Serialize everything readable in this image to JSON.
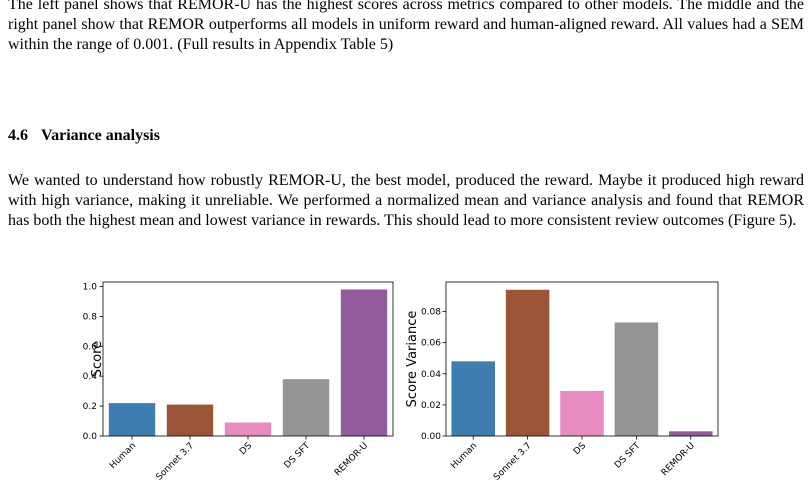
{
  "paragraph1": "The left panel shows that REMOR-U has the highest scores across metrics compared to other models. The middle and the right panel show that REMOR outperforms all models in uniform reward and human-aligned reward. All values had a SEM within the range of 0.001. (Full results in Appendix Table 5)",
  "section": {
    "number": "4.6",
    "title": "Variance analysis"
  },
  "paragraph2": "We wanted to understand how robustly REMOR-U, the best model, produced the reward. Maybe it produced high reward with high variance, making it unreliable. We performed a normalized mean and variance analysis and found that REMOR has both the highest mean and lowest variance in rewards. This should lead to more consistent review outcomes (Figure 5).",
  "chart_data": [
    {
      "type": "bar",
      "categories": [
        "Human",
        "Sonnet 3.7",
        "DS",
        "DS SFT",
        "REMOR-U"
      ],
      "values": [
        0.22,
        0.21,
        0.09,
        0.38,
        0.98
      ],
      "colors": [
        "#3f7cb0",
        "#9b5536",
        "#e68cc0",
        "#959595",
        "#925b9b"
      ],
      "ylabel": "Score",
      "ylim": [
        0,
        1.03
      ],
      "yticks": [
        0.0,
        0.2,
        0.4,
        0.6,
        0.8,
        1.0
      ],
      "ytick_labels": [
        "0.0",
        "0.2",
        "0.4",
        "0.6",
        "0.8",
        "1.0"
      ],
      "grid": false
    },
    {
      "type": "bar",
      "categories": [
        "Human",
        "Sonnet 3.7",
        "DS",
        "DS SFT",
        "REMOR-U"
      ],
      "values": [
        0.048,
        0.094,
        0.029,
        0.073,
        0.003
      ],
      "colors": [
        "#3f7cb0",
        "#9b5536",
        "#e68cc0",
        "#959595",
        "#925b9b"
      ],
      "ylabel": "Score Variance",
      "ylim": [
        0,
        0.099
      ],
      "yticks": [
        0.0,
        0.02,
        0.04,
        0.06,
        0.08
      ],
      "ytick_labels": [
        "0.00",
        "0.02",
        "0.04",
        "0.06",
        "0.08"
      ],
      "grid": false
    }
  ]
}
